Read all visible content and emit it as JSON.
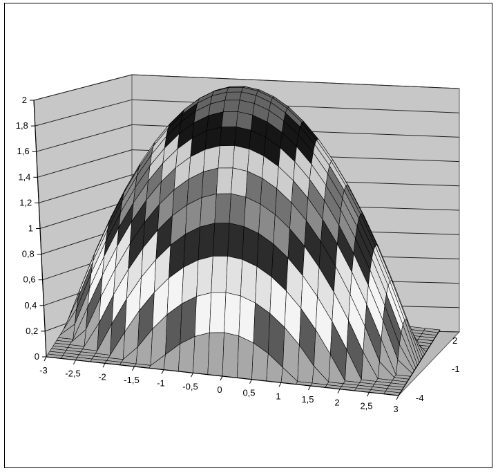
{
  "chart_data": {
    "type": "surface",
    "title": "",
    "x": {
      "ticks": [
        -3,
        -2.5,
        -2,
        -1.5,
        -1,
        -0.5,
        0,
        0.5,
        1,
        1.5,
        2,
        2.5,
        3
      ],
      "tick_labels": [
        "-3",
        "-2,5",
        "-2",
        "-1,5",
        "-1",
        "-0,5",
        "0",
        "0,5",
        "1",
        "1,5",
        "2",
        "2,5",
        "3"
      ]
    },
    "y": {
      "ticks": [
        2,
        -1,
        -4
      ],
      "tick_labels": [
        "2",
        "-1",
        "-4"
      ]
    },
    "z": {
      "range": [
        0,
        2
      ],
      "ticks": [
        0,
        0.2,
        0.4,
        0.6,
        0.8,
        1,
        1.2,
        1.4,
        1.6,
        1.8,
        2
      ],
      "tick_labels": [
        "0",
        "0,2",
        "0,4",
        "0,6",
        "0,8",
        "1",
        "1,2",
        "1,4",
        "1,6",
        "1,8",
        "2"
      ]
    },
    "bands": [
      {
        "range": [
          0,
          0.2
        ],
        "color": "#a8a8a8"
      },
      {
        "range": [
          0.2,
          0.4
        ],
        "color": "#5a5a5a"
      },
      {
        "range": [
          0.4,
          0.6
        ],
        "color": "#f4f4f4"
      },
      {
        "range": [
          0.6,
          0.8
        ],
        "color": "#e2e2e2"
      },
      {
        "range": [
          0.8,
          1.0
        ],
        "color": "#2c2c2c"
      },
      {
        "range": [
          1.0,
          1.2
        ],
        "color": "#8a8a8a"
      },
      {
        "range": [
          1.2,
          1.4
        ],
        "color": "#727272"
      },
      {
        "range": [
          1.4,
          1.6
        ],
        "color": "#cdcdcd"
      },
      {
        "range": [
          1.6,
          1.8
        ],
        "color": "#161616"
      },
      {
        "range": [
          1.8,
          2.0
        ],
        "color": "#646464"
      }
    ],
    "surface_shape": "dome",
    "peak_z": 2,
    "grid": true,
    "wall_color": "#c7c7c7"
  }
}
